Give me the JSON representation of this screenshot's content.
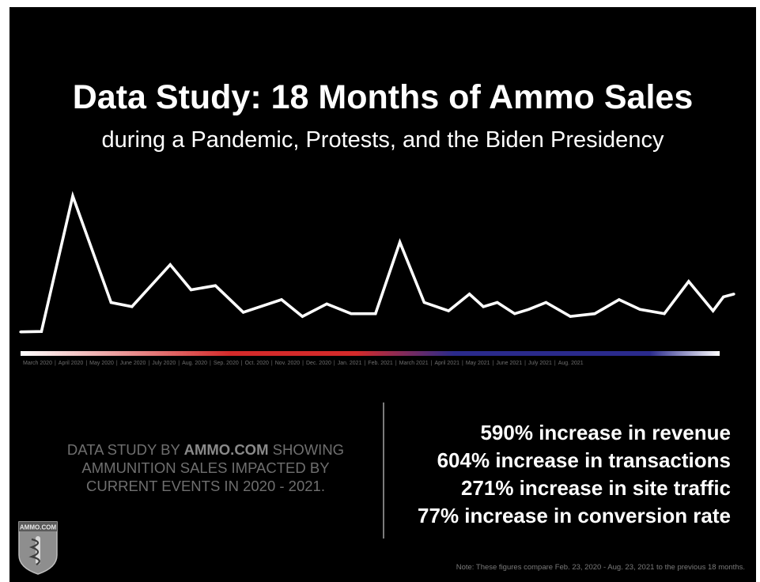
{
  "title": "Data Study: 18 Months of Ammo Sales",
  "subtitle": "during a Pandemic, Protests, and the Biden Presidency",
  "chart_data": {
    "type": "line",
    "title": "",
    "xlabel": "",
    "ylabel": "",
    "grid": false,
    "legend": "none",
    "line_color": "#ffffff",
    "gradient_bar_colors": [
      "#ffffff",
      "#d42a2a",
      "#2a2a8c",
      "#ffffff"
    ],
    "categories": [
      "March 2020",
      "April 2020",
      "May 2020",
      "June 2020",
      "July 2020",
      "Aug. 2020",
      "Sep. 2020",
      "Oct. 2020",
      "Nov. 2020",
      "Dec. 2020",
      "Jan. 2021",
      "Feb. 2021",
      "March 2021",
      "April 2021",
      "May 2021",
      "June 2021",
      "July 2021",
      "Aug. 2021"
    ],
    "x": [
      0,
      0.6,
      1.5,
      2.6,
      3.2,
      4.3,
      4.9,
      5.6,
      6.4,
      7.5,
      8.1,
      8.8,
      9.5,
      10.2,
      10.9,
      11.6,
      12.3,
      12.9,
      13.3,
      13.7,
      14.2,
      14.6,
      15.1,
      15.8,
      16.5,
      17.2,
      17.8,
      18.5,
      19.2,
      19.9,
      20.2,
      20.5
    ],
    "values": [
      3,
      3.3,
      100,
      24,
      21,
      51,
      33,
      36,
      17,
      26,
      14,
      23,
      16,
      16,
      67,
      24,
      18,
      30,
      21,
      24,
      16,
      19,
      24,
      14,
      16,
      26,
      19,
      16,
      39,
      18,
      28,
      30
    ],
    "ylim": [
      0,
      105
    ]
  },
  "month_labels": [
    "March 2020",
    "April 2020",
    "May 2020",
    "June 2020",
    "July 2020",
    "Aug. 2020",
    "Sep. 2020",
    "Oct. 2020",
    "Nov. 2020",
    "Dec. 2020",
    "Jan. 2021",
    "Feb. 2021",
    "March 2021",
    "April 2021",
    "May 2021",
    "June 2021",
    "July 2021",
    "Aug. 2021"
  ],
  "month_separator": "|",
  "study": {
    "line1_prefix": "DATA STUDY BY",
    "brand": "AMMO.COM",
    "line1_suffix": "SHOWING",
    "line2": "AMMUNITION SALES IMPACTED BY",
    "line3": "CURRENT EVENTS IN 2020 - 2021."
  },
  "stats": [
    "590% increase in revenue",
    "604% increase in transactions",
    "271% increase in site traffic",
    "77% increase in conversion rate"
  ],
  "logo": {
    "text": "AMMO.COM",
    "icon": "shield-icon"
  },
  "note": "Note: These figures compare Feb. 23, 2020 - Aug. 23, 2021 to the previous 18 months."
}
